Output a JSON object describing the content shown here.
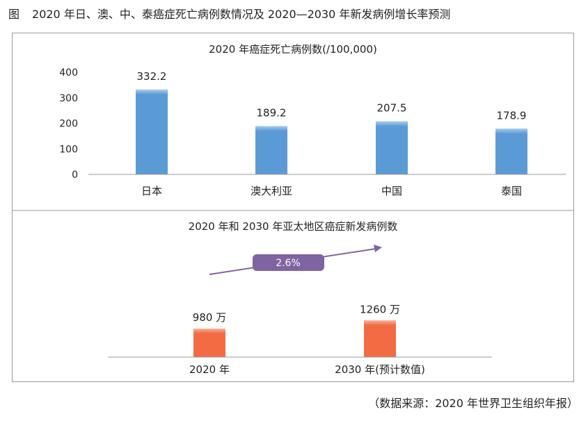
{
  "figure": {
    "label": "图",
    "title": "2020 年日、澳、中、泰癌症死亡病例数情况及 2020—2030 年新发病例增长率预测",
    "source": "（数据来源：2020 年世界卫生组织年报）"
  },
  "chart_data": [
    {
      "type": "bar",
      "title": "2020 年癌症死亡病例数(/100,000)",
      "categories": [
        "日本",
        "澳大利亚",
        "中国",
        "泰国"
      ],
      "values": [
        332.2,
        189.2,
        207.5,
        178.9
      ],
      "value_labels": [
        "332.2",
        "189.2",
        "207.5",
        "178.9"
      ],
      "yticks": [
        "0",
        "100",
        "200",
        "300",
        "400"
      ],
      "ylim": [
        0,
        400
      ],
      "color": "#5b9bd5",
      "grid": false
    },
    {
      "type": "bar",
      "title": "2020 年和 2030 年亚太地区癌症新发病例数",
      "categories": [
        "2020 年",
        "2030 年(预计数值)"
      ],
      "values": [
        980,
        1260
      ],
      "value_labels": [
        "980 万",
        "1260 万"
      ],
      "unit": "万",
      "color": "#f26b43",
      "annotation": {
        "text": "2.6%",
        "color": "#8064a2"
      },
      "grid": false
    }
  ]
}
